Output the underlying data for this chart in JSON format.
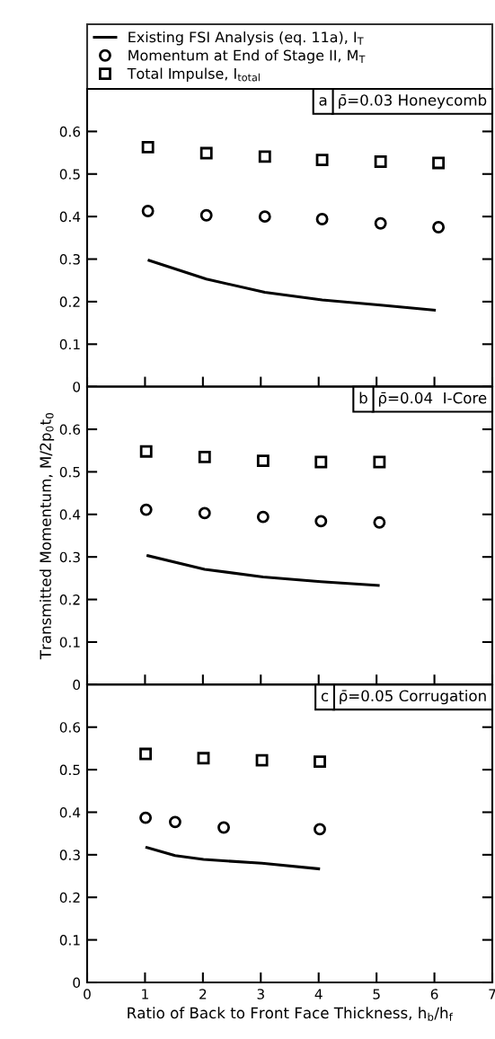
{
  "chart_data": [
    {
      "type": "line",
      "legend": "top",
      "tick_labels": "y",
      "xlim": [
        0,
        7
      ],
      "xticks": [
        {
          "value": 0,
          "label": null
        },
        {
          "value": 1,
          "label": null
        },
        {
          "value": 2,
          "label": null
        },
        {
          "value": 3,
          "label": null
        },
        {
          "value": 4,
          "label": null
        },
        {
          "value": 5,
          "label": null
        },
        {
          "value": 6,
          "label": null
        },
        {
          "value": 7,
          "label": null
        }
      ],
      "ylim": [
        0,
        0.7
      ],
      "yticks": [
        0,
        0.1,
        0.2,
        0.3,
        0.4,
        0.5,
        0.6
      ],
      "grid": false,
      "annotations": [
        "a",
        "ρ̄=0.03 Honeycomb"
      ],
      "series": [
        {
          "name": "Existing FSI Analysis (eq. 11a), I$_{T}$",
          "marker": "none",
          "line_style": "solid",
          "color": "#000000",
          "x": [
            1.07,
            2.06,
            3.07,
            4.06,
            5.07,
            6.0
          ],
          "values": [
            0.297,
            0.253,
            0.222,
            0.204,
            0.192,
            0.18
          ]
        },
        {
          "name": "Momentum at End of Stage II, M$_{T}$",
          "type": "scatter",
          "marker": "circle",
          "color": "#000000",
          "x": [
            1.05,
            2.06,
            3.07,
            4.06,
            5.07,
            6.07
          ],
          "values": [
            0.413,
            0.403,
            0.4,
            0.394,
            0.384,
            0.375
          ]
        },
        {
          "name": "Total Impulse, I$_{total}$",
          "type": "scatter",
          "marker": "square",
          "color": "#000000",
          "x": [
            1.05,
            2.06,
            3.07,
            4.06,
            5.07,
            6.07
          ],
          "values": [
            0.563,
            0.549,
            0.541,
            0.533,
            0.529,
            0.526
          ]
        }
      ]
    },
    {
      "type": "line",
      "tick_labels": "y",
      "xlim": [
        0,
        7
      ],
      "xticks": [
        {
          "value": 0,
          "label": null
        },
        {
          "value": 1,
          "label": null
        },
        {
          "value": 2,
          "label": null
        },
        {
          "value": 3,
          "label": null
        },
        {
          "value": 4,
          "label": null
        },
        {
          "value": 5,
          "label": null
        },
        {
          "value": 6,
          "label": null
        },
        {
          "value": 7,
          "label": null
        }
      ],
      "ylim": [
        0,
        0.7
      ],
      "yticks": [
        0,
        0.1,
        0.2,
        0.3,
        0.4,
        0.5,
        0.6
      ],
      "grid": false,
      "ylabel": "Transmitted Momentum, M/2p$_{0}$t$_{0}$",
      "annotations": [
        "b",
        "ρ̄=0.04  I-Core"
      ],
      "series": [
        {
          "marker": "none",
          "line_style": "solid",
          "color": "#000000",
          "x": [
            1.05,
            2.03,
            3.04,
            4.04,
            5.03
          ],
          "values": [
            0.303,
            0.271,
            0.253,
            0.242,
            0.233
          ]
        },
        {
          "type": "scatter",
          "marker": "circle",
          "color": "#000000",
          "x": [
            1.02,
            2.03,
            3.04,
            4.04,
            5.05
          ],
          "values": [
            0.411,
            0.403,
            0.394,
            0.384,
            0.381
          ]
        },
        {
          "type": "scatter",
          "marker": "square",
          "color": "#000000",
          "x": [
            1.02,
            2.03,
            3.04,
            4.04,
            5.05
          ],
          "values": [
            0.548,
            0.535,
            0.526,
            0.523,
            0.523
          ]
        }
      ]
    },
    {
      "type": "line",
      "xlim": [
        0,
        7
      ],
      "xticks": [
        0,
        1,
        2,
        3,
        4,
        5,
        6,
        7
      ],
      "ylim": [
        0,
        0.7
      ],
      "yticks": [
        0,
        0.1,
        0.2,
        0.3,
        0.4,
        0.5,
        0.6
      ],
      "grid": false,
      "xlabel": "Ratio of Back to Front Face Thickness, h$_{b}$/h$_{f}$",
      "annotations": [
        "c",
        "ρ̄=0.05 Corrugation"
      ],
      "series": [
        {
          "marker": "none",
          "line_style": "solid",
          "color": "#000000",
          "x": [
            1.03,
            1.52,
            2.01,
            3.02,
            4.0
          ],
          "values": [
            0.317,
            0.298,
            0.289,
            0.28,
            0.267
          ]
        },
        {
          "type": "scatter",
          "marker": "circle",
          "color": "#000000",
          "x": [
            1.01,
            1.52,
            2.36,
            4.02
          ],
          "values": [
            0.387,
            0.377,
            0.364,
            0.36
          ]
        },
        {
          "type": "scatter",
          "marker": "square",
          "color": "#000000",
          "x": [
            1.01,
            2.01,
            3.02,
            4.02
          ],
          "values": [
            0.537,
            0.527,
            0.522,
            0.519
          ]
        }
      ]
    }
  ]
}
